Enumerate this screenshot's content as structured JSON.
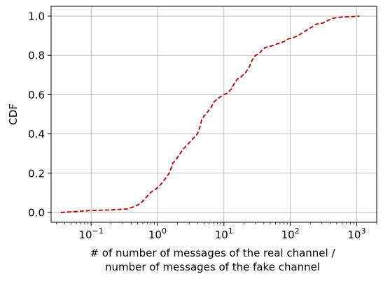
{
  "chart_data": {
    "type": "line",
    "xscale": "log",
    "xlim": [
      0.025,
      2000
    ],
    "ylim": [
      -0.05,
      1.05
    ],
    "grid": true,
    "xlabel_line1": "# of number of messages of the real channel /",
    "xlabel_line2": "number of messages of the fake channel",
    "ylabel": "CDF",
    "x_ticks": [
      {
        "value": 0.1,
        "base": "10",
        "exp": "−1"
      },
      {
        "value": 1,
        "base": "10",
        "exp": "0"
      },
      {
        "value": 10,
        "base": "10",
        "exp": "1"
      },
      {
        "value": 100,
        "base": "10",
        "exp": "2"
      },
      {
        "value": 1000,
        "base": "10",
        "exp": "3"
      }
    ],
    "y_ticks": [
      {
        "value": 0.0,
        "label": "0.0"
      },
      {
        "value": 0.2,
        "label": "0.2"
      },
      {
        "value": 0.4,
        "label": "0.4"
      },
      {
        "value": 0.6,
        "label": "0.6"
      },
      {
        "value": 0.8,
        "label": "0.8"
      },
      {
        "value": 1.0,
        "label": "1.0"
      }
    ],
    "series": [
      {
        "color": "#b20000",
        "style": "dashed",
        "x": [
          0.035,
          0.06,
          0.1,
          0.2,
          0.35,
          0.45,
          0.55,
          0.65,
          0.75,
          0.85,
          0.95,
          1.1,
          1.3,
          1.5,
          1.7,
          2.0,
          2.4,
          2.9,
          3.5,
          4.0,
          4.4,
          4.6,
          5.0,
          5.6,
          6.3,
          7.0,
          8.0,
          9.0,
          10.0,
          11.5,
          13.0,
          14.5,
          16.0,
          18.0,
          21.0,
          24.0,
          27.0,
          30.0,
          34.0,
          38.0,
          42.0,
          48.0,
          55.0,
          65.0,
          80.0,
          95.0,
          110.0,
          130.0,
          160.0,
          200.0,
          250.0,
          310.0,
          380.0,
          450.0,
          600.0,
          800.0,
          1100.0
        ],
        "y": [
          0.0,
          0.005,
          0.01,
          0.013,
          0.018,
          0.03,
          0.045,
          0.07,
          0.095,
          0.11,
          0.12,
          0.14,
          0.17,
          0.2,
          0.25,
          0.28,
          0.32,
          0.35,
          0.38,
          0.4,
          0.44,
          0.47,
          0.49,
          0.51,
          0.53,
          0.56,
          0.58,
          0.59,
          0.6,
          0.61,
          0.63,
          0.66,
          0.68,
          0.69,
          0.71,
          0.74,
          0.78,
          0.8,
          0.81,
          0.83,
          0.84,
          0.845,
          0.85,
          0.86,
          0.87,
          0.885,
          0.89,
          0.9,
          0.92,
          0.94,
          0.96,
          0.965,
          0.98,
          0.99,
          0.995,
          0.997,
          1.0
        ]
      }
    ]
  }
}
